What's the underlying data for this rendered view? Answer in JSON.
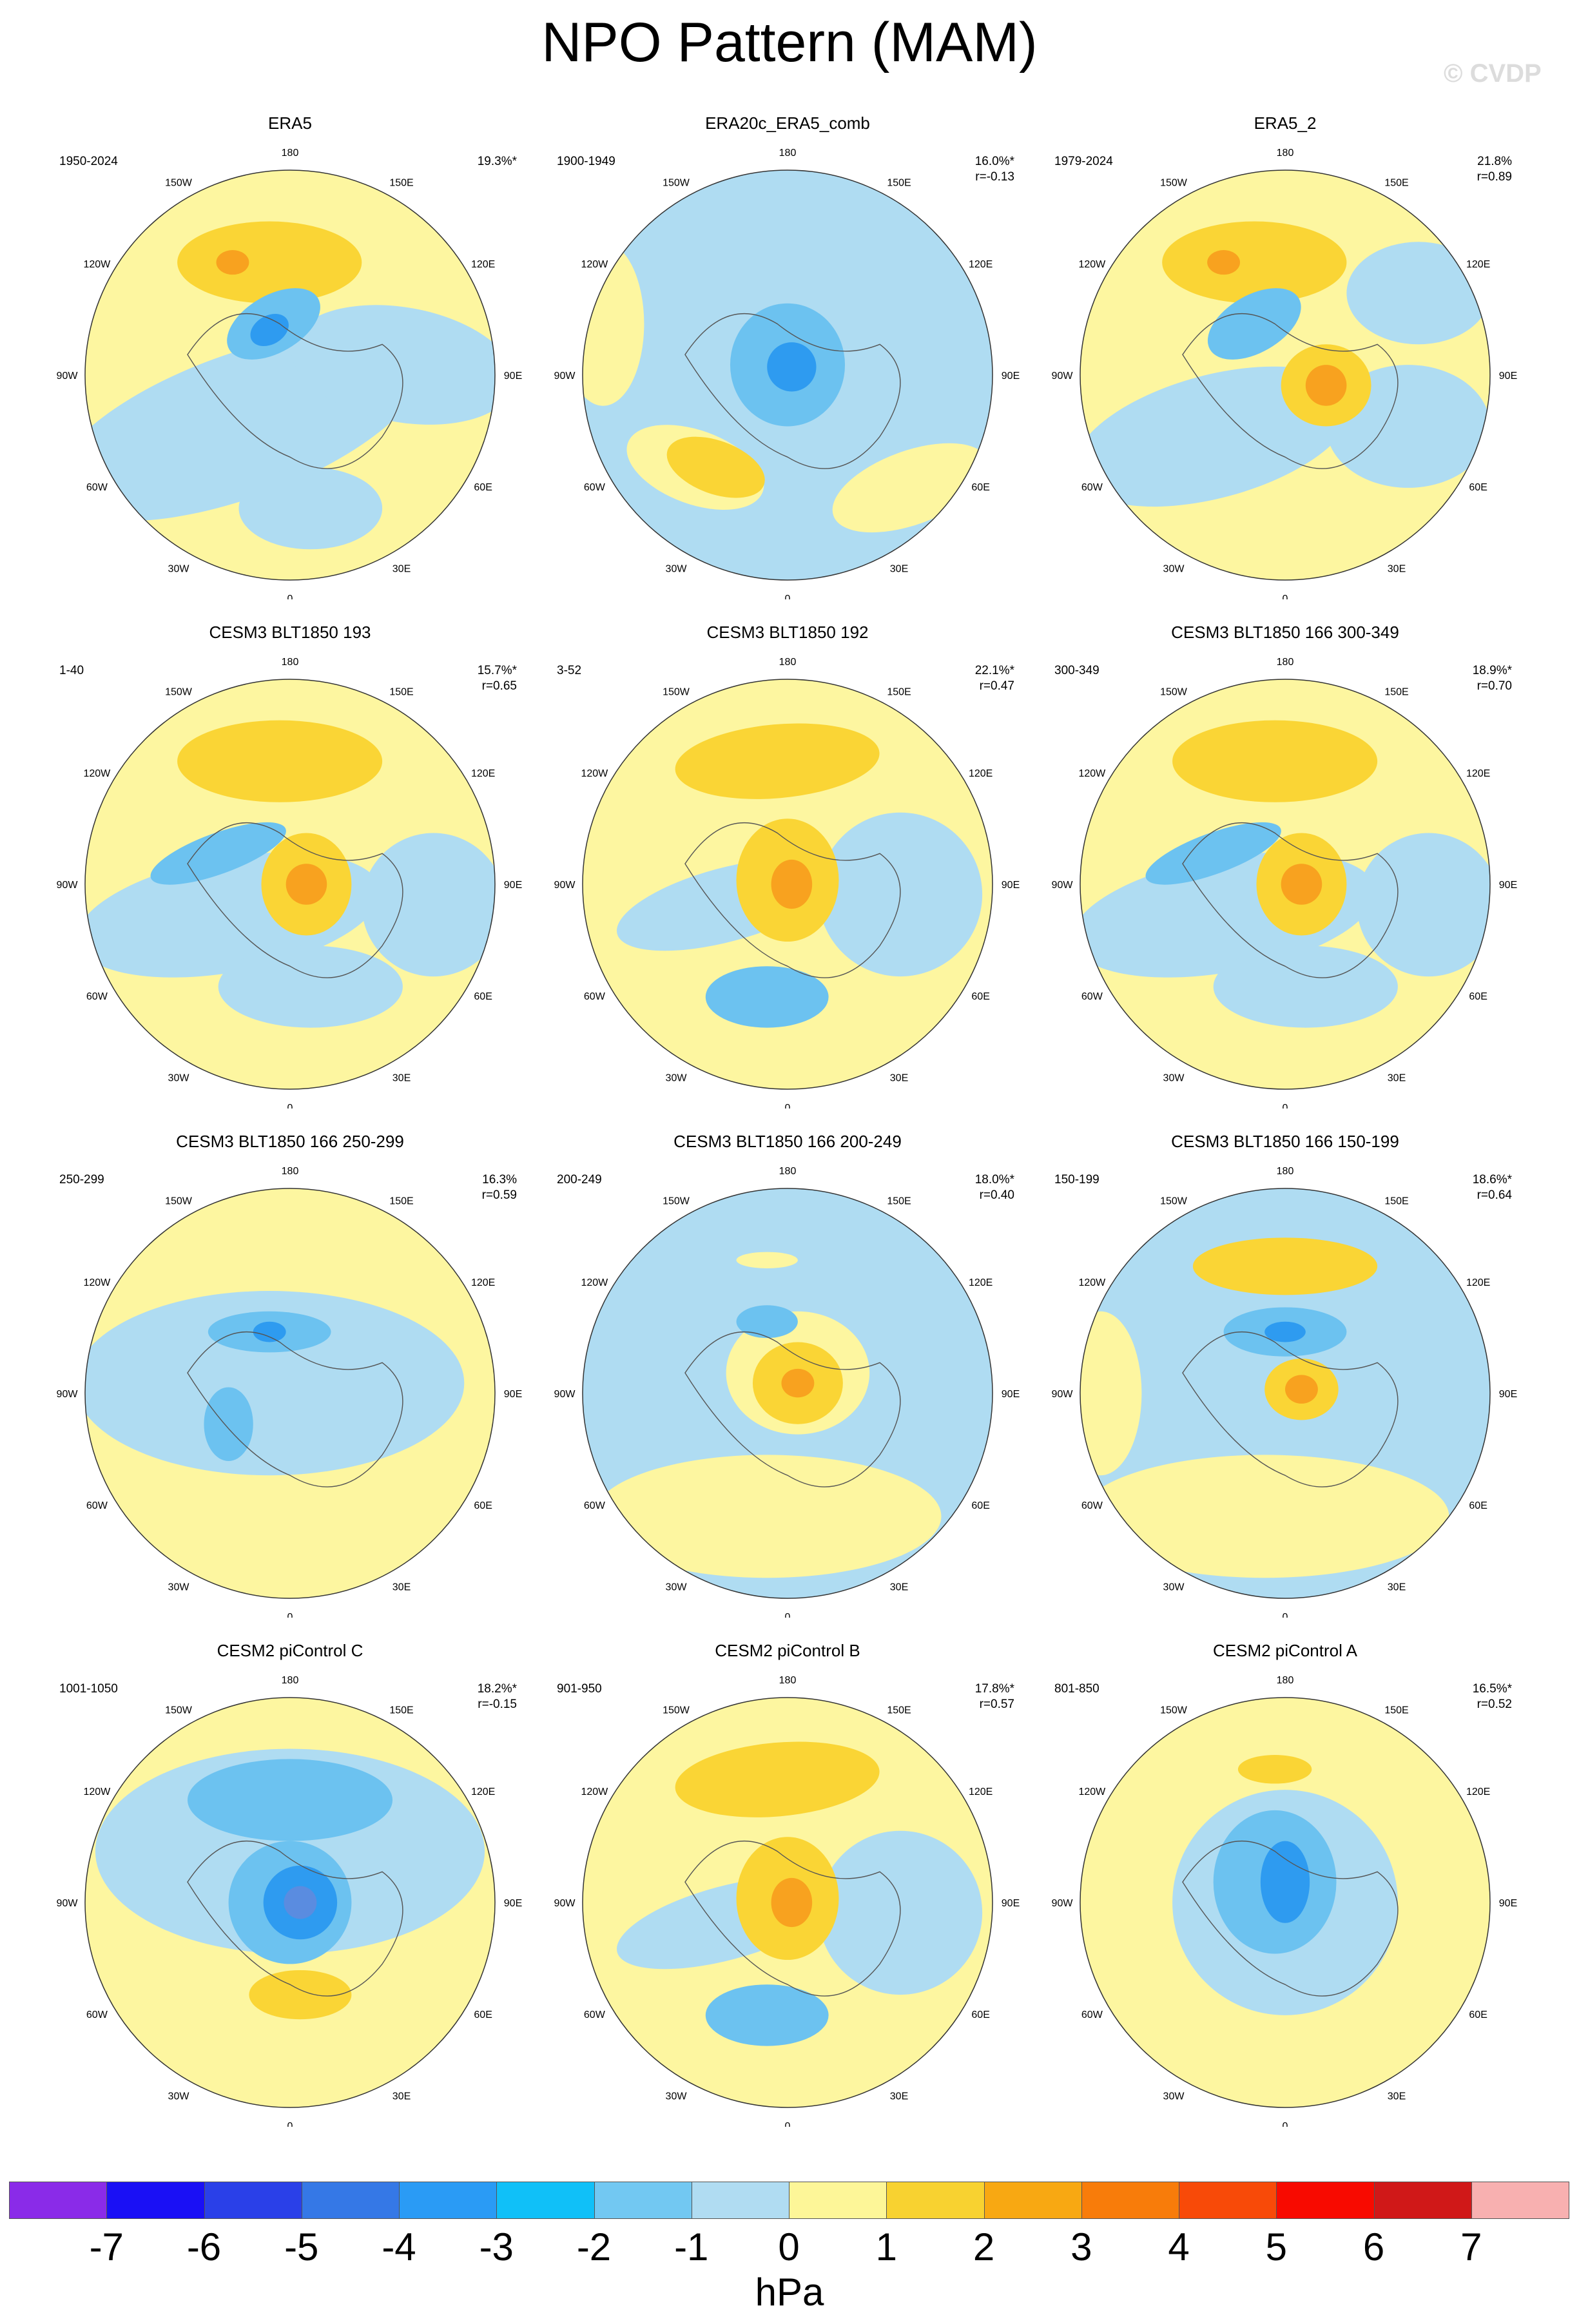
{
  "title": "NPO Pattern (MAM)",
  "watermark": "© CVDP",
  "colors": {
    "neg_deep": "#5a8ce0",
    "neg_strong": "#2e9bf0",
    "neg_medium": "#6cc2f0",
    "neg_light": "#afdcf2",
    "pos_light": "#fdf6a0",
    "pos_medium": "#fad535",
    "pos_strong": "#f8a21f",
    "pos_deep": "#f27b10",
    "coast": "#555555"
  },
  "lon_labels": [
    "180",
    "150E",
    "120E",
    "90E",
    "60E",
    "30E",
    "0",
    "30W",
    "60W",
    "90W",
    "120W",
    "150W"
  ],
  "panels": [
    {
      "title": "ERA5",
      "years": "1950-2024",
      "pct": "19.3%*",
      "corr": "",
      "style": "era5"
    },
    {
      "title": "ERA20c_ERA5_comb",
      "years": "1900-1949",
      "pct": "16.0%*",
      "corr": "r=-0.13",
      "style": "era20c"
    },
    {
      "title": "ERA5_2",
      "years": "1979-2024",
      "pct": "21.8%",
      "corr": "r=0.89",
      "style": "era5_2"
    },
    {
      "title": "CESM3 BLT1850 193",
      "years": "1-40",
      "pct": "15.7%*",
      "corr": "r=0.65",
      "style": "dipole"
    },
    {
      "title": "CESM3 BLT1850 192",
      "years": "3-52",
      "pct": "22.1%*",
      "corr": "r=0.47",
      "style": "dipole_yellow"
    },
    {
      "title": "CESM3 BLT1850 166 300-349",
      "years": "300-349",
      "pct": "18.9%*",
      "corr": "r=0.70",
      "style": "dipole"
    },
    {
      "title": "CESM3 BLT1850 166 250-299",
      "years": "250-299",
      "pct": "16.3%",
      "corr": "r=0.59",
      "style": "blue_weak"
    },
    {
      "title": "CESM3 BLT1850 166 200-249",
      "years": "200-249",
      "pct": "18.0%*",
      "corr": "r=0.40",
      "style": "center_pos"
    },
    {
      "title": "CESM3 BLT1850 166 150-199",
      "years": "150-199",
      "pct": "18.6%*",
      "corr": "r=0.64",
      "style": "dipole_blue"
    },
    {
      "title": "CESM2 piControl C",
      "years": "1001-1050",
      "pct": "18.2%*",
      "corr": "r=-0.15",
      "style": "center_neg"
    },
    {
      "title": "CESM2 piControl B",
      "years": "901-950",
      "pct": "17.8%*",
      "corr": "r=0.57",
      "style": "dipole_yellow"
    },
    {
      "title": "CESM2 piControl A",
      "years": "801-850",
      "pct": "16.5%*",
      "corr": "r=0.52",
      "style": "center_neg_b"
    }
  ],
  "colorbar": {
    "units": "hPa",
    "colors": [
      "#8a2be8",
      "#1a10f5",
      "#2a40e8",
      "#3578e6",
      "#2a9bf5",
      "#10c0f8",
      "#72c8f2",
      "#b0dcf2",
      "#fdf698",
      "#f8d230",
      "#f8a812",
      "#f87c0a",
      "#f84a08",
      "#f80a00",
      "#d01818",
      "#f8b0b0"
    ],
    "labels": [
      "-7",
      "-6",
      "-5",
      "-4",
      "-3",
      "-2",
      "-1",
      "0",
      "1",
      "2",
      "3",
      "4",
      "5",
      "6",
      "7"
    ]
  }
}
